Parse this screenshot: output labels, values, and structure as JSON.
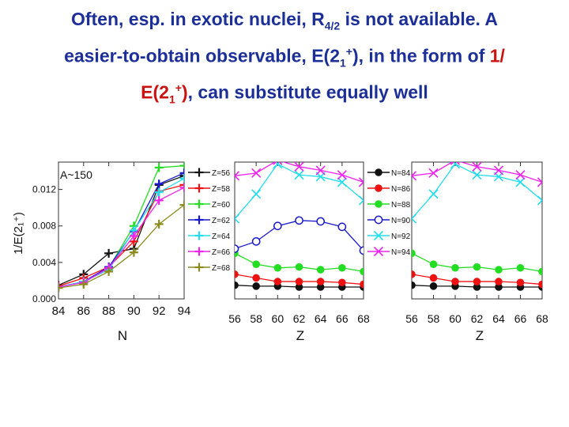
{
  "title": {
    "line1_a": "Often, esp. in exotic nuclei, R",
    "line1_sub": "4/2",
    "line1_b": " is not available.  A",
    "line2_a": "easier-to-obtain observable, E(2",
    "line2_sub": "1",
    "line2_sup": "+",
    "line2_b": "), in the form of ",
    "line2_red": "1/",
    "line3_red_a": "E(2",
    "line3_red_sub": "1",
    "line3_red_sup": "+",
    "line3_red_b": ")",
    "line3_b": ", can substitute equally well"
  },
  "colors": {
    "title": "#1c2f99",
    "highlight": "#cc1111",
    "black": "#111111",
    "red": "#ee1111",
    "green": "#22dd22",
    "blue": "#1a1acc",
    "cyan": "#22ddee",
    "magenta": "#ee22ee",
    "olive": "#8b8b1a"
  },
  "chart_data": [
    {
      "type": "line",
      "annotation": "A~150",
      "xlabel": "N",
      "ylabel": "1/E(2₁⁺)",
      "xlim": [
        84,
        94
      ],
      "ylim": [
        0,
        0.015
      ],
      "xticks": [
        "84",
        "86",
        "88",
        "90",
        "92",
        "94"
      ],
      "yticks": [
        "0.000",
        "0.004",
        "0.008",
        "0.012"
      ],
      "legend_position": "right",
      "marker": "plus",
      "series": [
        {
          "name": "Z=56",
          "color": "black",
          "x": [
            84,
            86,
            88,
            90,
            92,
            94
          ],
          "y": [
            0.0015,
            0.0027,
            0.005,
            0.0055,
            0.0125,
            0.0135
          ]
        },
        {
          "name": "Z=58",
          "color": "red",
          "x": [
            84,
            86,
            88,
            90,
            92,
            94
          ],
          "y": [
            0.0014,
            0.0023,
            0.0035,
            0.0063,
            0.0118,
            0.0125
          ]
        },
        {
          "name": "Z=60",
          "color": "green",
          "x": [
            84,
            86,
            88,
            90,
            92,
            94
          ],
          "y": [
            0.0013,
            0.0019,
            0.0034,
            0.008,
            0.0144,
            0.0146
          ]
        },
        {
          "name": "Z=62",
          "color": "blue",
          "x": [
            84,
            86,
            88,
            90,
            92,
            94
          ],
          "y": [
            0.0013,
            0.0019,
            0.0035,
            0.0074,
            0.0126,
            0.0138
          ]
        },
        {
          "name": "Z=64",
          "color": "cyan",
          "x": [
            84,
            86,
            88,
            90,
            92,
            94
          ],
          "y": [
            0.0013,
            0.0019,
            0.0032,
            0.0075,
            0.0117,
            0.0132
          ]
        },
        {
          "name": "Z=66",
          "color": "magenta",
          "x": [
            84,
            86,
            88,
            90,
            92,
            94
          ],
          "y": [
            0.0013,
            0.0018,
            0.0034,
            0.0069,
            0.0108,
            0.0122
          ]
        },
        {
          "name": "Z=68",
          "color": "olive",
          "x": [
            84,
            86,
            88,
            90,
            92,
            94
          ],
          "y": [
            0.0012,
            0.0016,
            0.003,
            0.0051,
            0.0082,
            0.0103
          ]
        }
      ]
    },
    {
      "type": "line",
      "xlabel": "Z",
      "xlim": [
        56,
        68
      ],
      "ylim": [
        0,
        0.015
      ],
      "xticks": [
        "56",
        "58",
        "60",
        "62",
        "64",
        "66",
        "68"
      ],
      "legend_position": "right",
      "series": [
        {
          "name": "N=84",
          "color": "black",
          "marker": "filled-circle",
          "x": [
            56,
            58,
            60,
            62,
            64,
            66,
            68
          ],
          "y": [
            0.0015,
            0.0014,
            0.0014,
            0.0013,
            0.0013,
            0.0013,
            0.0013
          ]
        },
        {
          "name": "N=86",
          "color": "red",
          "marker": "filled-circle",
          "x": [
            56,
            58,
            60,
            62,
            64,
            66,
            68
          ],
          "y": [
            0.0027,
            0.0023,
            0.0019,
            0.0019,
            0.0019,
            0.0018,
            0.0016
          ]
        },
        {
          "name": "N=88",
          "color": "green",
          "marker": "filled-circle",
          "x": [
            56,
            58,
            60,
            62,
            64,
            66,
            68
          ],
          "y": [
            0.005,
            0.0038,
            0.0034,
            0.0035,
            0.0032,
            0.0034,
            0.003
          ]
        },
        {
          "name": "N=90",
          "color": "blue",
          "marker": "open-circle",
          "x": [
            56,
            58,
            60,
            62,
            64,
            66,
            68
          ],
          "y": [
            0.0055,
            0.0063,
            0.008,
            0.0086,
            0.0085,
            0.0079,
            0.0053
          ]
        },
        {
          "name": "N=92",
          "color": "cyan",
          "marker": "x",
          "x": [
            56,
            58,
            60,
            62,
            64,
            66,
            68
          ],
          "y": [
            0.0088,
            0.0115,
            0.0148,
            0.0136,
            0.0134,
            0.0128,
            0.0108
          ]
        },
        {
          "name": "N=94",
          "color": "magenta",
          "marker": "x",
          "x": [
            56,
            58,
            60,
            62,
            64,
            66,
            68
          ],
          "y": [
            0.0135,
            0.0138,
            0.0152,
            0.0145,
            0.0141,
            0.0136,
            0.0128
          ]
        }
      ]
    },
    {
      "type": "line",
      "xlabel": "Z",
      "xlim": [
        56,
        68
      ],
      "ylim": [
        0,
        0.015
      ],
      "xticks": [
        "56",
        "58",
        "60",
        "62",
        "64",
        "66",
        "68"
      ],
      "series": [
        {
          "name": "",
          "color": "black",
          "marker": "filled-circle",
          "x": [
            56,
            58,
            60,
            62,
            64,
            66,
            68
          ],
          "y": [
            0.0015,
            0.0014,
            0.0014,
            0.0013,
            0.0013,
            0.0013,
            0.0013
          ]
        },
        {
          "name": "",
          "color": "red",
          "marker": "filled-circle",
          "x": [
            56,
            58,
            60,
            62,
            64,
            66,
            68
          ],
          "y": [
            0.0027,
            0.0023,
            0.0019,
            0.0019,
            0.0019,
            0.0018,
            0.0016
          ]
        },
        {
          "name": "",
          "color": "green",
          "marker": "filled-circle",
          "x": [
            56,
            58,
            60,
            62,
            64,
            66,
            68
          ],
          "y": [
            0.005,
            0.0038,
            0.0034,
            0.0035,
            0.0032,
            0.0034,
            0.003
          ]
        },
        {
          "name": "",
          "color": "cyan",
          "marker": "x",
          "x": [
            56,
            58,
            60,
            62,
            64,
            66,
            68
          ],
          "y": [
            0.0088,
            0.0115,
            0.0148,
            0.0136,
            0.0134,
            0.0128,
            0.0108
          ]
        },
        {
          "name": "",
          "color": "magenta",
          "marker": "x",
          "x": [
            56,
            58,
            60,
            62,
            64,
            66,
            68
          ],
          "y": [
            0.0135,
            0.0138,
            0.0152,
            0.0145,
            0.0141,
            0.0136,
            0.0128
          ]
        }
      ]
    }
  ]
}
